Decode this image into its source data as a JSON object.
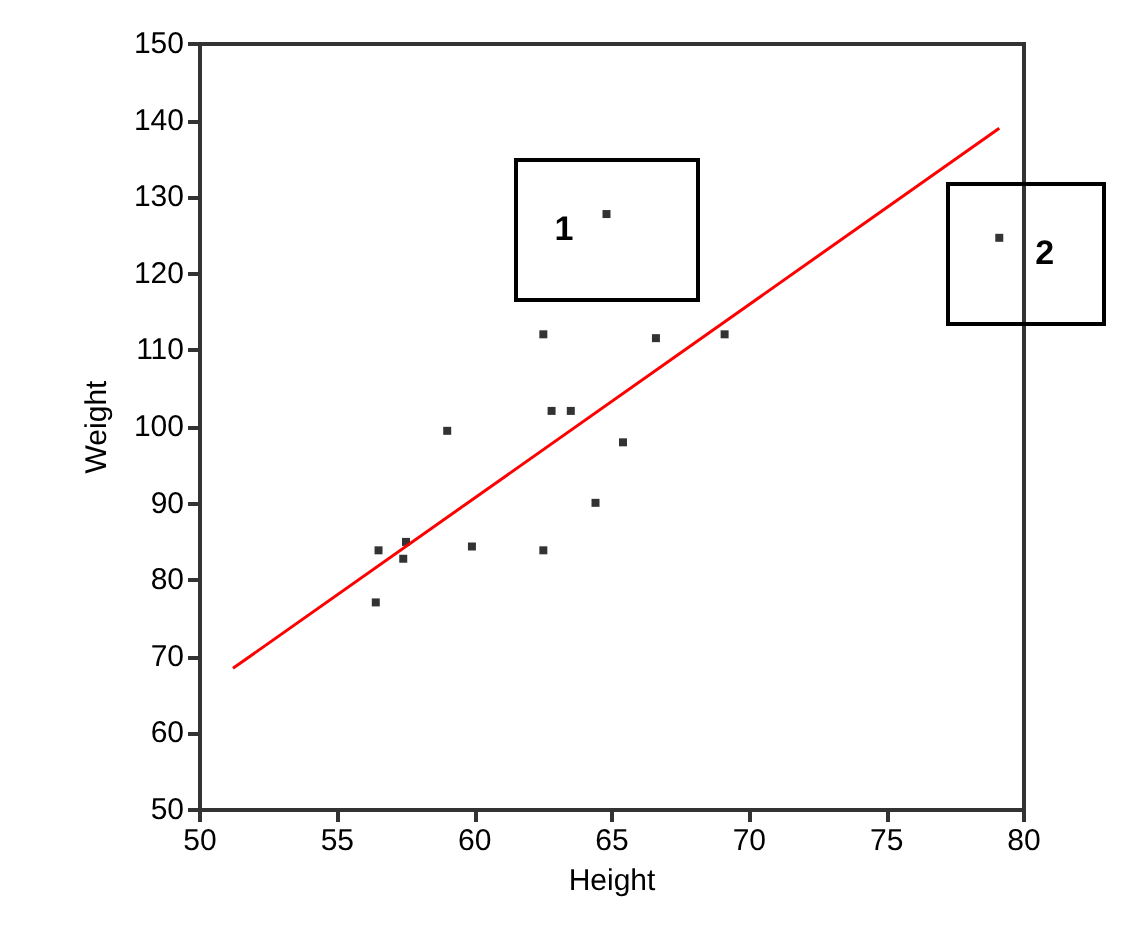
{
  "chart_data": {
    "type": "scatter",
    "xlabel": "Height",
    "ylabel": "Weight",
    "xlim": [
      50,
      80
    ],
    "xticks": [
      50,
      55,
      60,
      65,
      70,
      75,
      80
    ],
    "ylim": [
      50,
      150
    ],
    "yticks": [
      50,
      60,
      70,
      80,
      90,
      100,
      110,
      120,
      130,
      140,
      150
    ],
    "grid": false,
    "marker": "square",
    "series": [
      {
        "color": "#000000",
        "x": [
          64.8,
          79.1,
          62.5,
          66.6,
          69.1,
          62.8,
          63.5,
          59.0,
          65.4,
          64.4,
          56.5,
          57.5,
          57.4,
          59.9,
          62.5,
          56.4
        ],
        "values": [
          127.8,
          124.7,
          112.1,
          111.6,
          112.1,
          102.1,
          102.1,
          99.5,
          98.0,
          90.1,
          83.9,
          85.0,
          82.8,
          84.4,
          83.9,
          77.1
        ]
      },
      {
        "type": "line",
        "color": "#ff0000",
        "x": [
          51.2,
          79.1
        ],
        "values": [
          68.5,
          139.0
        ],
        "marker": "none",
        "line_style": "solid"
      }
    ],
    "annotations": [
      {
        "text": "1",
        "x": 64.8,
        "y": 127.8
      },
      {
        "text": "2",
        "x": 79.1,
        "y": 124.7
      }
    ]
  }
}
